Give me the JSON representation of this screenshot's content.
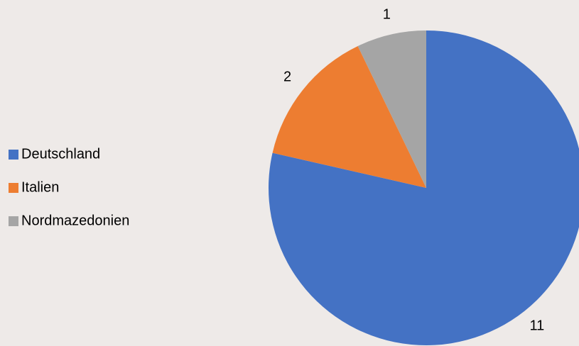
{
  "chart_data": {
    "type": "pie",
    "categories": [
      "Deutschland",
      "Italien",
      "Nordmazedonien"
    ],
    "values": [
      11,
      2,
      1
    ],
    "colors": [
      "#4472c4",
      "#ed7d31",
      "#a5a5a5"
    ],
    "legend": "left"
  }
}
